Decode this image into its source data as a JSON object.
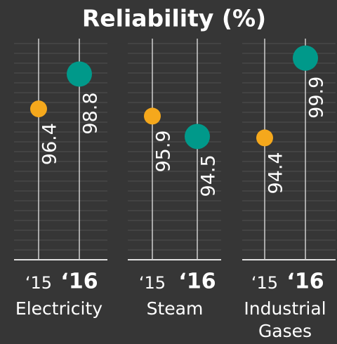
{
  "chart_data": {
    "type": "dot",
    "title": "Reliability (%)",
    "categories": [
      "Electricity",
      "Steam",
      "Industrial Gases"
    ],
    "series": [
      {
        "name": "‘15",
        "color": "#f5a81c",
        "values": [
          96.4,
          95.9,
          94.4
        ]
      },
      {
        "name": "‘16",
        "color": "#00998a",
        "values": [
          98.8,
          94.5,
          99.9
        ]
      }
    ],
    "ylim": [
      86,
      101
    ]
  }
}
